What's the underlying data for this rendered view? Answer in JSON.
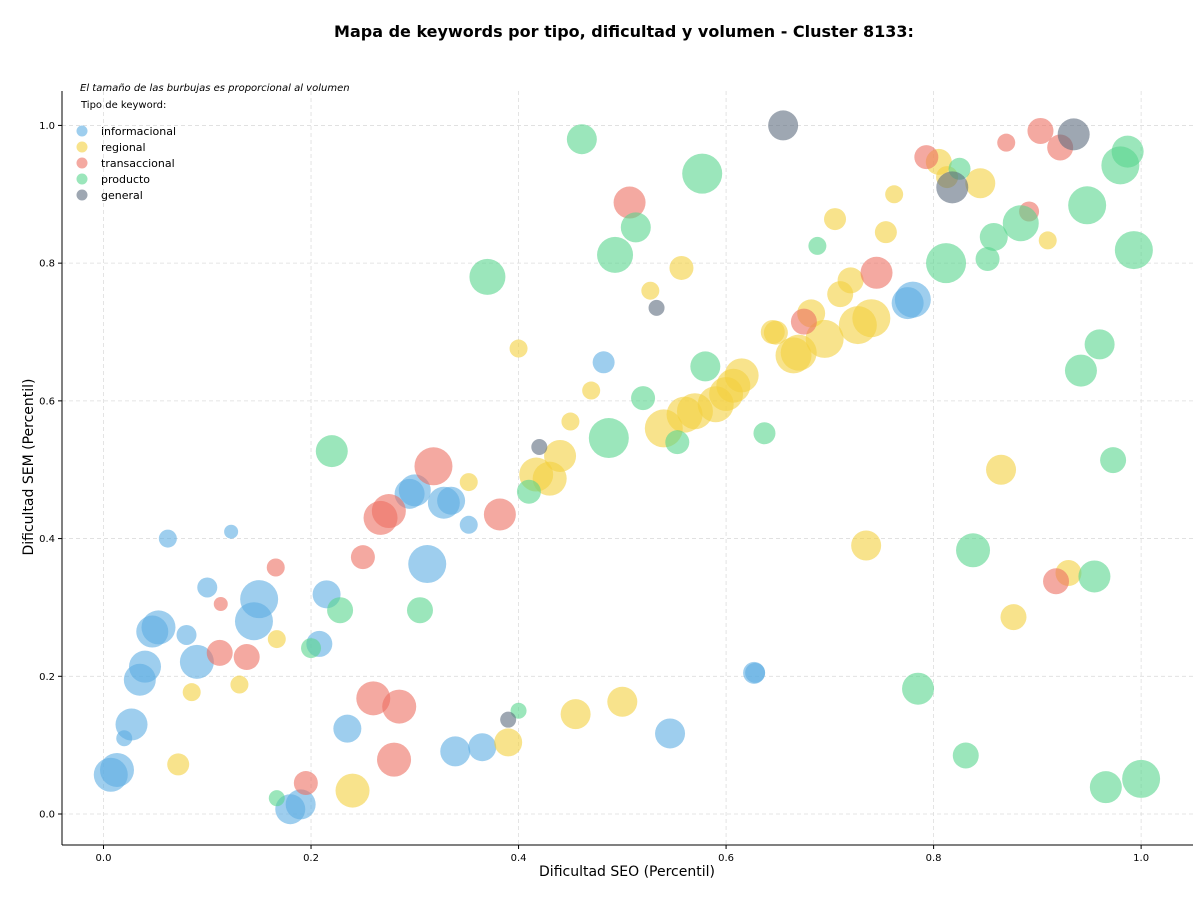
{
  "chart_data": {
    "type": "scatter",
    "title": "Mapa de keywords por tipo, dificultad y volumen - Cluster 8133:",
    "xlabel": "Dificultad SEO (Percentil)",
    "ylabel": "Dificultad SEM (Percentil)",
    "xlim": [
      -0.04,
      1.05
    ],
    "ylim": [
      -0.045,
      1.05
    ],
    "xticks": [
      0.0,
      0.2,
      0.4,
      0.6,
      0.8,
      1.0
    ],
    "yticks": [
      0.0,
      0.2,
      0.4,
      0.6,
      0.8,
      1.0
    ],
    "xtick_labels": [
      "0.0",
      "0.2",
      "0.4",
      "0.6",
      "0.8",
      "1.0"
    ],
    "ytick_labels": [
      "0.0",
      "0.2",
      "0.4",
      "0.6",
      "0.8",
      "1.0"
    ],
    "grid": true,
    "annotation": "El tamaño de las burbujas es proporcional al volumen",
    "legend_title": "Tipo de keyword:",
    "legend_position": "top-left",
    "series": [
      {
        "name": "informacional",
        "color": "#5DADE2",
        "points": [
          {
            "x": 0.007,
            "y": 0.057,
            "size": 17
          },
          {
            "x": 0.013,
            "y": 0.064,
            "size": 17
          },
          {
            "x": 0.02,
            "y": 0.11,
            "size": 8
          },
          {
            "x": 0.027,
            "y": 0.13,
            "size": 16
          },
          {
            "x": 0.035,
            "y": 0.195,
            "size": 16
          },
          {
            "x": 0.04,
            "y": 0.214,
            "size": 16
          },
          {
            "x": 0.047,
            "y": 0.265,
            "size": 16
          },
          {
            "x": 0.053,
            "y": 0.271,
            "size": 17
          },
          {
            "x": 0.062,
            "y": 0.4,
            "size": 9
          },
          {
            "x": 0.08,
            "y": 0.26,
            "size": 10
          },
          {
            "x": 0.09,
            "y": 0.221,
            "size": 17
          },
          {
            "x": 0.1,
            "y": 0.329,
            "size": 10
          },
          {
            "x": 0.123,
            "y": 0.41,
            "size": 7
          },
          {
            "x": 0.145,
            "y": 0.28,
            "size": 19
          },
          {
            "x": 0.15,
            "y": 0.312,
            "size": 19
          },
          {
            "x": 0.18,
            "y": 0.007,
            "size": 15
          },
          {
            "x": 0.19,
            "y": 0.014,
            "size": 15
          },
          {
            "x": 0.208,
            "y": 0.247,
            "size": 13
          },
          {
            "x": 0.215,
            "y": 0.319,
            "size": 14
          },
          {
            "x": 0.235,
            "y": 0.124,
            "size": 14
          },
          {
            "x": 0.295,
            "y": 0.465,
            "size": 15
          },
          {
            "x": 0.3,
            "y": 0.47,
            "size": 16
          },
          {
            "x": 0.312,
            "y": 0.363,
            "size": 19
          },
          {
            "x": 0.328,
            "y": 0.452,
            "size": 16
          },
          {
            "x": 0.335,
            "y": 0.455,
            "size": 14
          },
          {
            "x": 0.339,
            "y": 0.091,
            "size": 15
          },
          {
            "x": 0.352,
            "y": 0.42,
            "size": 9
          },
          {
            "x": 0.365,
            "y": 0.097,
            "size": 14
          },
          {
            "x": 0.482,
            "y": 0.656,
            "size": 11
          },
          {
            "x": 0.546,
            "y": 0.117,
            "size": 15
          },
          {
            "x": 0.627,
            "y": 0.205,
            "size": 11
          },
          {
            "x": 0.628,
            "y": 0.205,
            "size": 10
          },
          {
            "x": 0.775,
            "y": 0.742,
            "size": 16
          },
          {
            "x": 0.78,
            "y": 0.747,
            "size": 18
          }
        ]
      },
      {
        "name": "regional",
        "color": "#F4D03F",
        "points": [
          {
            "x": 0.072,
            "y": 0.072,
            "size": 11
          },
          {
            "x": 0.085,
            "y": 0.177,
            "size": 9
          },
          {
            "x": 0.131,
            "y": 0.188,
            "size": 9
          },
          {
            "x": 0.167,
            "y": 0.254,
            "size": 9
          },
          {
            "x": 0.24,
            "y": 0.034,
            "size": 17
          },
          {
            "x": 0.352,
            "y": 0.482,
            "size": 9
          },
          {
            "x": 0.39,
            "y": 0.104,
            "size": 14
          },
          {
            "x": 0.4,
            "y": 0.676,
            "size": 9
          },
          {
            "x": 0.417,
            "y": 0.493,
            "size": 17
          },
          {
            "x": 0.43,
            "y": 0.487,
            "size": 17
          },
          {
            "x": 0.44,
            "y": 0.52,
            "size": 16
          },
          {
            "x": 0.45,
            "y": 0.57,
            "size": 9
          },
          {
            "x": 0.455,
            "y": 0.145,
            "size": 15
          },
          {
            "x": 0.47,
            "y": 0.615,
            "size": 9
          },
          {
            "x": 0.5,
            "y": 0.163,
            "size": 15
          },
          {
            "x": 0.527,
            "y": 0.76,
            "size": 9
          },
          {
            "x": 0.54,
            "y": 0.56,
            "size": 19
          },
          {
            "x": 0.56,
            "y": 0.58,
            "size": 18
          },
          {
            "x": 0.557,
            "y": 0.793,
            "size": 12
          },
          {
            "x": 0.57,
            "y": 0.585,
            "size": 18
          },
          {
            "x": 0.59,
            "y": 0.595,
            "size": 18
          },
          {
            "x": 0.6,
            "y": 0.61,
            "size": 17
          },
          {
            "x": 0.607,
            "y": 0.622,
            "size": 17
          },
          {
            "x": 0.615,
            "y": 0.637,
            "size": 17
          },
          {
            "x": 0.645,
            "y": 0.7,
            "size": 12
          },
          {
            "x": 0.648,
            "y": 0.699,
            "size": 12
          },
          {
            "x": 0.665,
            "y": 0.666,
            "size": 18
          },
          {
            "x": 0.67,
            "y": 0.67,
            "size": 18
          },
          {
            "x": 0.682,
            "y": 0.727,
            "size": 14
          },
          {
            "x": 0.695,
            "y": 0.69,
            "size": 19
          },
          {
            "x": 0.705,
            "y": 0.864,
            "size": 11
          },
          {
            "x": 0.71,
            "y": 0.755,
            "size": 13
          },
          {
            "x": 0.72,
            "y": 0.775,
            "size": 13
          },
          {
            "x": 0.727,
            "y": 0.71,
            "size": 19
          },
          {
            "x": 0.74,
            "y": 0.72,
            "size": 19
          },
          {
            "x": 0.735,
            "y": 0.39,
            "size": 15
          },
          {
            "x": 0.754,
            "y": 0.845,
            "size": 11
          },
          {
            "x": 0.762,
            "y": 0.9,
            "size": 9
          },
          {
            "x": 0.805,
            "y": 0.947,
            "size": 13
          },
          {
            "x": 0.813,
            "y": 0.925,
            "size": 11
          },
          {
            "x": 0.845,
            "y": 0.916,
            "size": 15
          },
          {
            "x": 0.865,
            "y": 0.5,
            "size": 15
          },
          {
            "x": 0.877,
            "y": 0.286,
            "size": 13
          },
          {
            "x": 0.91,
            "y": 0.833,
            "size": 9
          },
          {
            "x": 0.93,
            "y": 0.35,
            "size": 13
          }
        ]
      },
      {
        "name": "transaccional",
        "color": "#EC7063",
        "points": [
          {
            "x": 0.113,
            "y": 0.305,
            "size": 7
          },
          {
            "x": 0.112,
            "y": 0.234,
            "size": 13
          },
          {
            "x": 0.138,
            "y": 0.228,
            "size": 13
          },
          {
            "x": 0.166,
            "y": 0.358,
            "size": 9
          },
          {
            "x": 0.195,
            "y": 0.045,
            "size": 12
          },
          {
            "x": 0.25,
            "y": 0.373,
            "size": 12
          },
          {
            "x": 0.26,
            "y": 0.168,
            "size": 17
          },
          {
            "x": 0.267,
            "y": 0.43,
            "size": 17
          },
          {
            "x": 0.275,
            "y": 0.44,
            "size": 17
          },
          {
            "x": 0.28,
            "y": 0.079,
            "size": 17
          },
          {
            "x": 0.285,
            "y": 0.156,
            "size": 17
          },
          {
            "x": 0.318,
            "y": 0.505,
            "size": 19
          },
          {
            "x": 0.382,
            "y": 0.435,
            "size": 16
          },
          {
            "x": 0.507,
            "y": 0.888,
            "size": 16
          },
          {
            "x": 0.675,
            "y": 0.715,
            "size": 13
          },
          {
            "x": 0.745,
            "y": 0.786,
            "size": 16
          },
          {
            "x": 0.793,
            "y": 0.954,
            "size": 12
          },
          {
            "x": 0.87,
            "y": 0.975,
            "size": 9
          },
          {
            "x": 0.892,
            "y": 0.875,
            "size": 10
          },
          {
            "x": 0.903,
            "y": 0.992,
            "size": 13
          },
          {
            "x": 0.918,
            "y": 0.338,
            "size": 13
          },
          {
            "x": 0.922,
            "y": 0.968,
            "size": 13
          }
        ]
      },
      {
        "name": "producto",
        "color": "#58D68D",
        "points": [
          {
            "x": 0.167,
            "y": 0.023,
            "size": 8
          },
          {
            "x": 0.2,
            "y": 0.241,
            "size": 10
          },
          {
            "x": 0.22,
            "y": 0.527,
            "size": 16
          },
          {
            "x": 0.228,
            "y": 0.296,
            "size": 13
          },
          {
            "x": 0.305,
            "y": 0.296,
            "size": 13
          },
          {
            "x": 0.37,
            "y": 0.78,
            "size": 18
          },
          {
            "x": 0.4,
            "y": 0.15,
            "size": 8
          },
          {
            "x": 0.41,
            "y": 0.468,
            "size": 12
          },
          {
            "x": 0.461,
            "y": 0.98,
            "size": 15
          },
          {
            "x": 0.487,
            "y": 0.546,
            "size": 20
          },
          {
            "x": 0.493,
            "y": 0.812,
            "size": 18
          },
          {
            "x": 0.513,
            "y": 0.852,
            "size": 15
          },
          {
            "x": 0.52,
            "y": 0.604,
            "size": 12
          },
          {
            "x": 0.553,
            "y": 0.54,
            "size": 12
          },
          {
            "x": 0.577,
            "y": 0.93,
            "size": 20
          },
          {
            "x": 0.58,
            "y": 0.65,
            "size": 15
          },
          {
            "x": 0.637,
            "y": 0.553,
            "size": 11
          },
          {
            "x": 0.688,
            "y": 0.825,
            "size": 9
          },
          {
            "x": 0.785,
            "y": 0.182,
            "size": 16
          },
          {
            "x": 0.812,
            "y": 0.8,
            "size": 20
          },
          {
            "x": 0.825,
            "y": 0.937,
            "size": 11
          },
          {
            "x": 0.831,
            "y": 0.085,
            "size": 13
          },
          {
            "x": 0.838,
            "y": 0.383,
            "size": 17
          },
          {
            "x": 0.852,
            "y": 0.806,
            "size": 12
          },
          {
            "x": 0.858,
            "y": 0.838,
            "size": 14
          },
          {
            "x": 0.884,
            "y": 0.858,
            "size": 18
          },
          {
            "x": 0.942,
            "y": 0.644,
            "size": 16
          },
          {
            "x": 0.948,
            "y": 0.884,
            "size": 19
          },
          {
            "x": 0.955,
            "y": 0.345,
            "size": 16
          },
          {
            "x": 0.96,
            "y": 0.682,
            "size": 15
          },
          {
            "x": 0.966,
            "y": 0.039,
            "size": 16
          },
          {
            "x": 0.973,
            "y": 0.514,
            "size": 13
          },
          {
            "x": 0.98,
            "y": 0.942,
            "size": 19
          },
          {
            "x": 0.987,
            "y": 0.962,
            "size": 16
          },
          {
            "x": 0.993,
            "y": 0.819,
            "size": 19
          },
          {
            "x": 1.0,
            "y": 0.051,
            "size": 19
          }
        ]
      },
      {
        "name": "general",
        "color": "#5D6D7E",
        "points": [
          {
            "x": 0.39,
            "y": 0.137,
            "size": 8
          },
          {
            "x": 0.42,
            "y": 0.533,
            "size": 8
          },
          {
            "x": 0.533,
            "y": 0.735,
            "size": 8
          },
          {
            "x": 0.655,
            "y": 1.0,
            "size": 15
          },
          {
            "x": 0.818,
            "y": 0.91,
            "size": 16
          },
          {
            "x": 0.935,
            "y": 0.987,
            "size": 16
          }
        ]
      }
    ]
  }
}
